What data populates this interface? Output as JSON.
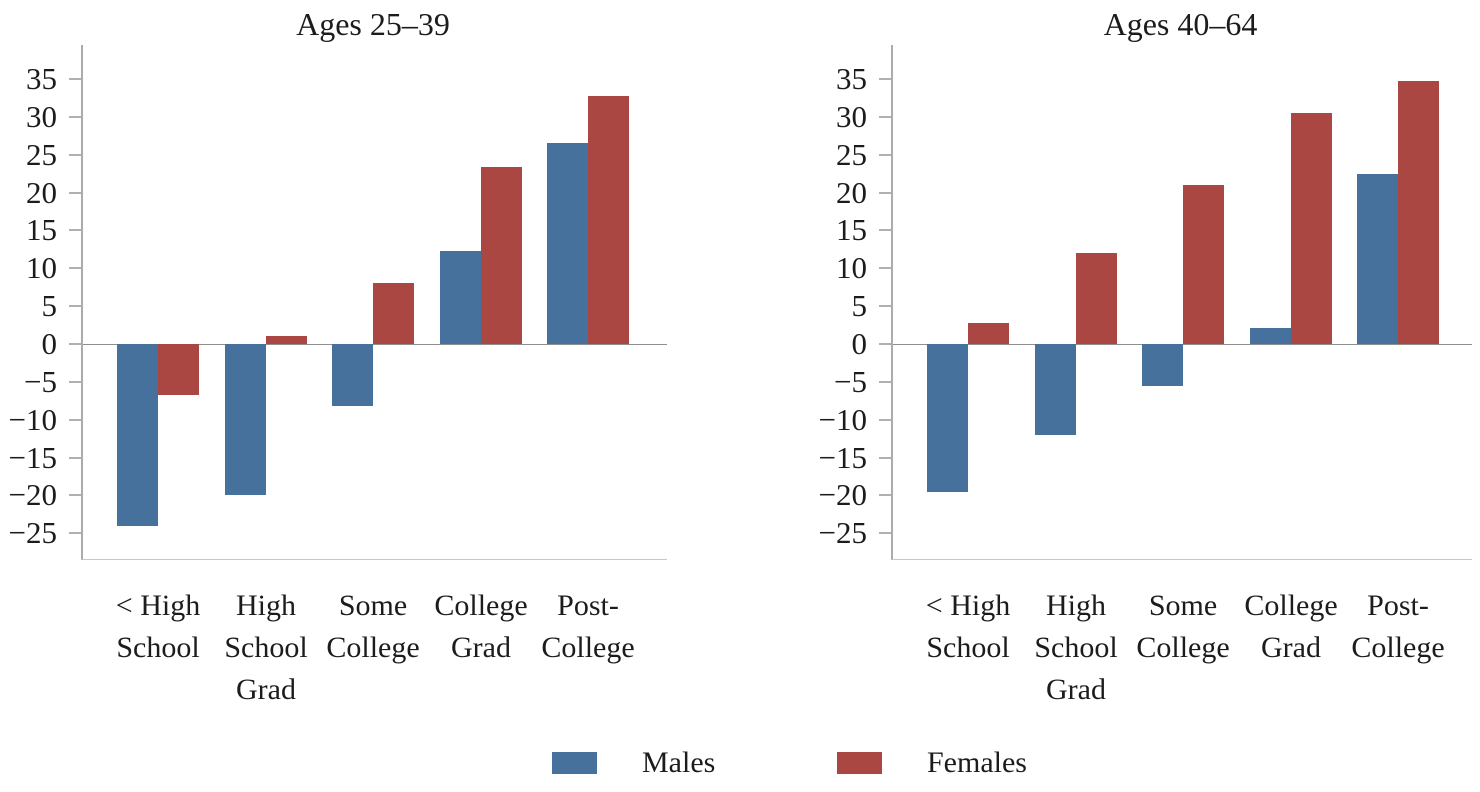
{
  "colors": {
    "males": "#46719C",
    "females": "#AB4743",
    "axis": "#ABABAB",
    "tick": "#B0B0B0",
    "zero_line": "#8F8F8F",
    "baseline": "#C8C8C8",
    "text": "#1C1C1C"
  },
  "legend": {
    "position": "bottom",
    "items": [
      {
        "label": "Males",
        "color_key": "males"
      },
      {
        "label": "Females",
        "color_key": "females"
      }
    ]
  },
  "chart_data": [
    {
      "type": "bar",
      "title": "Ages 25–39",
      "categories": [
        "< High School",
        "High School Grad",
        "Some College",
        "College Grad",
        "Post-College"
      ],
      "category_lines": [
        [
          "< High",
          "School"
        ],
        [
          "High",
          "School",
          "Grad"
        ],
        [
          "Some",
          "College"
        ],
        [
          "College",
          "Grad"
        ],
        [
          "Post-",
          "College"
        ]
      ],
      "series": [
        {
          "name": "Males",
          "color_key": "males",
          "values": [
            -24,
            -20,
            -8.2,
            12.3,
            26.5
          ]
        },
        {
          "name": "Females",
          "color_key": "females",
          "values": [
            -6.8,
            1,
            8,
            23.4,
            32.8
          ]
        }
      ],
      "yticks": [
        35,
        30,
        25,
        20,
        15,
        10,
        5,
        0,
        -5,
        -10,
        -15,
        -20,
        -25
      ],
      "ylim": [
        -28.4,
        39.5
      ],
      "grid": false
    },
    {
      "type": "bar",
      "title": "Ages 40–64",
      "categories": [
        "< High School",
        "High School Grad",
        "Some College",
        "College Grad",
        "Post-College"
      ],
      "category_lines": [
        [
          "< High",
          "School"
        ],
        [
          "High",
          "School",
          "Grad"
        ],
        [
          "Some",
          "College"
        ],
        [
          "College",
          "Grad"
        ],
        [
          "Post-",
          "College"
        ]
      ],
      "series": [
        {
          "name": "Males",
          "color_key": "males",
          "values": [
            -19.5,
            -12,
            -5.5,
            2.1,
            22.5
          ]
        },
        {
          "name": "Females",
          "color_key": "females",
          "values": [
            2.8,
            12,
            21,
            30.5,
            34.7
          ]
        }
      ],
      "yticks": [
        35,
        30,
        25,
        20,
        15,
        10,
        5,
        0,
        -5,
        -10,
        -15,
        -20,
        -25
      ],
      "ylim": [
        -28.4,
        39.5
      ],
      "grid": false
    }
  ]
}
